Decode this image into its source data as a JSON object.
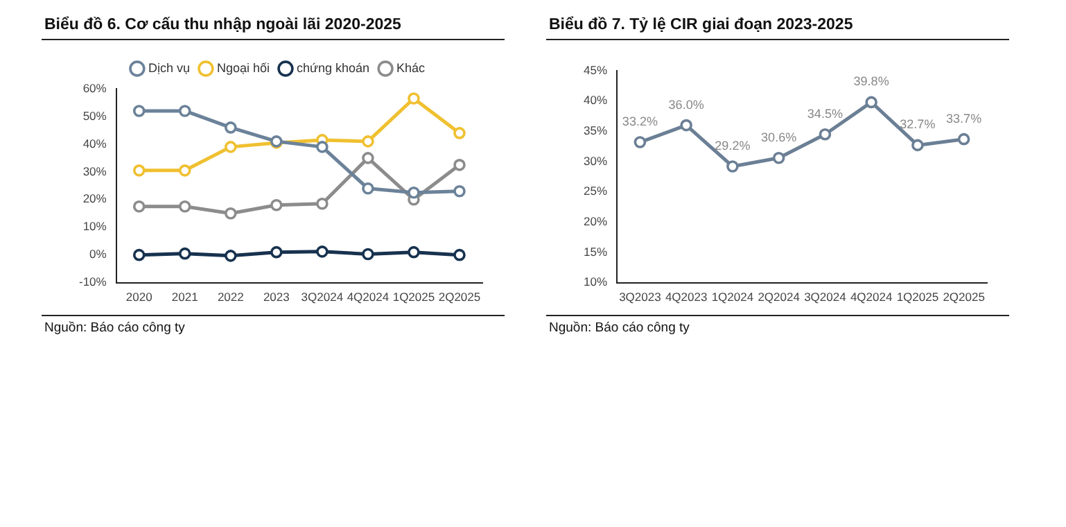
{
  "chart_data": [
    {
      "type": "line",
      "title": "Biểu đồ 6. Cơ cấu thu nhập ngoài lãi 2020-2025",
      "categories": [
        "2020",
        "2021",
        "2022",
        "2023",
        "3Q2024",
        "4Q2024",
        "1Q2025",
        "2Q2025"
      ],
      "series": [
        {
          "name": "Dịch vụ",
          "color": "#6b8299",
          "values": [
            52,
            52,
            46,
            41,
            39,
            24,
            22.5,
            23
          ]
        },
        {
          "name": "Ngoại hối",
          "color": "#f0c030",
          "values": [
            30.5,
            30.5,
            39,
            40.5,
            41.5,
            41,
            56.5,
            44
          ]
        },
        {
          "name": "chứng khoán",
          "color": "#17324f",
          "values": [
            0,
            0.5,
            -0.3,
            1,
            1.2,
            0.3,
            1,
            0
          ]
        },
        {
          "name": "Khác",
          "color": "#8c8c8c",
          "values": [
            17.5,
            17.5,
            15,
            18,
            18.5,
            35,
            20,
            32.5
          ]
        }
      ],
      "ylim": [
        -10,
        60
      ],
      "yticks": [
        {
          "value": -10,
          "label": "-10%"
        },
        {
          "value": 0,
          "label": "0%"
        },
        {
          "value": 10,
          "label": "10%"
        },
        {
          "value": 20,
          "label": "20%"
        },
        {
          "value": 30,
          "label": "30%"
        },
        {
          "value": 40,
          "label": "40%"
        },
        {
          "value": 50,
          "label": "50%"
        },
        {
          "value": 60,
          "label": "60%"
        }
      ],
      "grid": false,
      "legend": "top",
      "marker": "circle",
      "line_style": "solid",
      "annotations": [
        "Nguồn: Báo cáo công ty"
      ]
    },
    {
      "type": "line",
      "title": "Biểu đồ 7. Tỷ lệ CIR giai đoạn 2023-2025",
      "categories": [
        "3Q2023",
        "4Q2023",
        "1Q2024",
        "2Q2024",
        "3Q2024",
        "4Q2024",
        "1Q2025",
        "2Q2025"
      ],
      "series": [
        {
          "color": "#6b7f95",
          "values": [
            33.2,
            36.0,
            29.2,
            30.6,
            34.5,
            39.8,
            32.7,
            33.7
          ],
          "value_labels": [
            "33.2%",
            "36.0%",
            "29.2%",
            "30.6%",
            "34.5%",
            "39.8%",
            "32.7%",
            "33.7%"
          ]
        }
      ],
      "ylim": [
        10,
        45
      ],
      "yticks": [
        {
          "value": 10,
          "label": "10%"
        },
        {
          "value": 15,
          "label": "15%"
        },
        {
          "value": 20,
          "label": "20%"
        },
        {
          "value": 25,
          "label": "25%"
        },
        {
          "value": 30,
          "label": "30%"
        },
        {
          "value": 35,
          "label": "35%"
        },
        {
          "value": 40,
          "label": "40%"
        },
        {
          "value": 45,
          "label": "45%"
        }
      ],
      "grid": false,
      "legend": false,
      "marker": "circle",
      "line_style": "solid",
      "annotations": [
        "Nguồn: Báo cáo công ty"
      ]
    }
  ]
}
